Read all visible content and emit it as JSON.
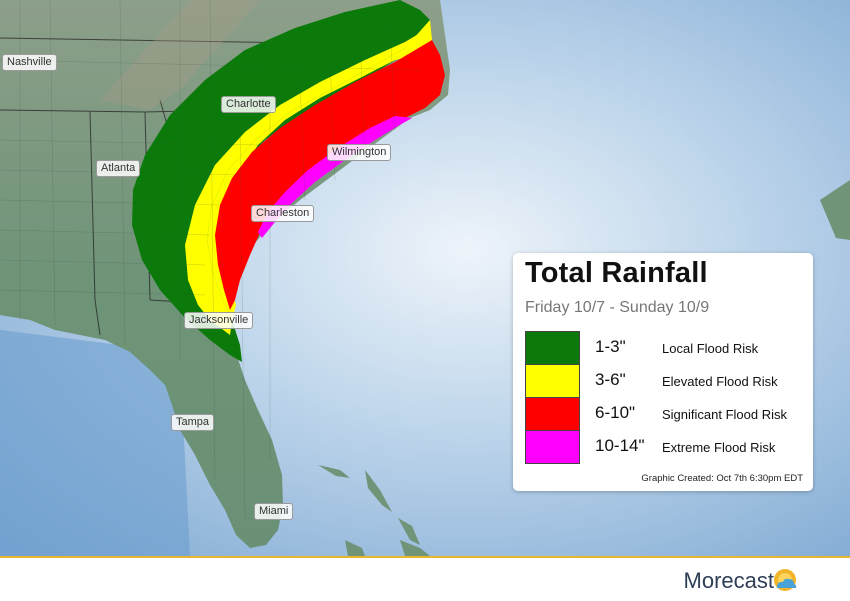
{
  "map": {
    "cities": [
      {
        "name": "Nashville"
      },
      {
        "name": "Charlotte"
      },
      {
        "name": "Atlanta"
      },
      {
        "name": "Wilmington"
      },
      {
        "name": "Charleston"
      },
      {
        "name": "Jacksonville"
      },
      {
        "name": "Tampa"
      },
      {
        "name": "Miami"
      }
    ],
    "colors": {
      "ocean": "#8fb7dc",
      "land": "#6f9478",
      "green": "#0b7a0b",
      "yellow": "#ffff00",
      "red": "#ff0000",
      "magenta": "#ff00ff"
    }
  },
  "legend": {
    "title": "Total Rainfall",
    "subtitle": "Friday 10/7 - Sunday 10/9",
    "items": [
      {
        "range": "1-3\"",
        "risk": "Local Flood Risk",
        "color": "#0b7a0b"
      },
      {
        "range": "3-6\"",
        "risk": "Elevated Flood Risk",
        "color": "#ffff00"
      },
      {
        "range": "6-10\"",
        "risk": "Significant Flood Risk",
        "color": "#ff0000"
      },
      {
        "range": "10-14\"",
        "risk": "Extreme Flood Risk",
        "color": "#ff00ff"
      }
    ],
    "credit": "Graphic Created: Oct 7th 6:30pm EDT"
  },
  "footer": {
    "brand": "Morecast",
    "logo_icon": "sun-cloud-icon",
    "accent": "#e8b531"
  }
}
